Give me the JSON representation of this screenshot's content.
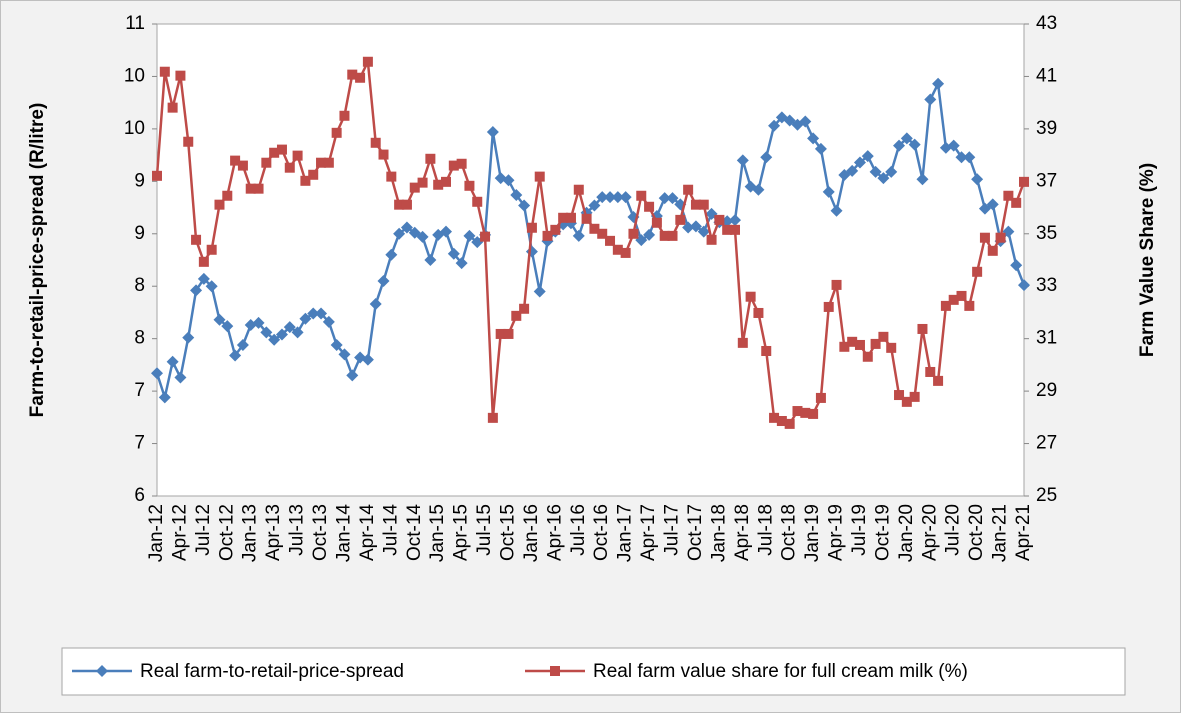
{
  "chart_data": {
    "type": "line",
    "y_label": "Farm-to-retail-price-spread (R/litre)",
    "y2_label": "Farm Value Share (%)",
    "categories": [
      "Jan-12",
      null,
      null,
      "Apr-12",
      null,
      null,
      "Jul-12",
      null,
      null,
      "Oct-12",
      null,
      null,
      "Jan-13",
      null,
      null,
      "Apr-13",
      null,
      null,
      "Jul-13",
      null,
      null,
      "Oct-13",
      null,
      null,
      "Jan-14",
      null,
      null,
      "Apr-14",
      null,
      null,
      "Jul-14",
      null,
      null,
      "Oct-14",
      null,
      null,
      "Jan-15",
      null,
      null,
      "Apr-15",
      null,
      null,
      "Jul-15",
      null,
      null,
      "Oct-15",
      null,
      null,
      "Jan-16",
      null,
      null,
      "Apr-16",
      null,
      null,
      "Jul-16",
      null,
      null,
      "Oct-16",
      null,
      null,
      "Jan-17",
      null,
      null,
      "Apr-17",
      null,
      null,
      "Jul-17",
      null,
      null,
      "Oct-17",
      null,
      null,
      "Jan-18",
      null,
      null,
      "Apr-18",
      null,
      null,
      "Jul-18",
      null,
      null,
      "Oct-18",
      null,
      null,
      "Jan-19",
      null,
      null,
      "Apr-19",
      null,
      null,
      "Jul-19",
      null,
      null,
      "Oct-19",
      null,
      null,
      "Jan-20",
      null,
      null,
      "Apr-20",
      null,
      null,
      "Jul-20",
      null,
      null,
      "Oct-20",
      null,
      null,
      "Jan-21",
      null,
      null,
      "Apr-21"
    ],
    "ylim": [
      6,
      10.5
    ],
    "yticks": [
      6,
      {
        "value": 6.5,
        "label": "7"
      },
      7,
      {
        "value": 7.5,
        "label": "8"
      },
      8,
      {
        "value": 8.5,
        "label": "9"
      },
      9,
      {
        "value": 9.5,
        "label": "10"
      },
      10,
      {
        "value": 10.5,
        "label": "11"
      }
    ],
    "y2lim": [
      25,
      43
    ],
    "y2ticks": [
      25,
      27,
      29,
      31,
      33,
      35,
      37,
      39,
      41,
      43
    ],
    "legend": "bottom",
    "series": [
      {
        "name": "Real farm-to-retail-price-spread",
        "color": "#4a7ebb",
        "marker": "diamond",
        "values": [
          7.17,
          6.94,
          7.28,
          7.13,
          7.51,
          7.96,
          8.07,
          8.0,
          7.68,
          7.62,
          7.34,
          7.44,
          7.63,
          7.65,
          7.56,
          7.49,
          7.54,
          7.61,
          7.56,
          7.69,
          7.74,
          7.74,
          7.66,
          7.44,
          7.35,
          7.15,
          7.32,
          7.3,
          7.83,
          8.05,
          8.3,
          8.5,
          8.56,
          8.51,
          8.47,
          8.25,
          8.49,
          8.52,
          8.31,
          8.22,
          8.48,
          8.42,
          8.49,
          9.47,
          9.03,
          9.01,
          8.87,
          8.77,
          8.33,
          7.95,
          8.43,
          8.52,
          8.59,
          8.6,
          8.48,
          8.7,
          8.77,
          8.85,
          8.85,
          8.85,
          8.85,
          8.66,
          8.44,
          8.49,
          8.67,
          8.84,
          8.84,
          8.78,
          8.56,
          8.57,
          8.52,
          8.69,
          8.61,
          8.62,
          8.63,
          9.2,
          8.95,
          8.92,
          9.23,
          9.53,
          9.61,
          9.58,
          9.54,
          9.57,
          9.41,
          9.31,
          8.9,
          8.72,
          9.06,
          9.1,
          9.18,
          9.24,
          9.09,
          9.03,
          9.09,
          9.34,
          9.41,
          9.35,
          9.02,
          9.78,
          9.93,
          9.32,
          9.34,
          9.23,
          9.23,
          9.02,
          8.74,
          8.78,
          8.43,
          8.52,
          8.2,
          8.01
        ]
      },
      {
        "name": "Real farm value share for full cream milk (%)",
        "color": "#be4b48",
        "marker": "square",
        "axis": "y2",
        "values": [
          37.21,
          41.18,
          39.81,
          41.03,
          38.51,
          34.77,
          33.93,
          34.39,
          36.11,
          36.45,
          37.79,
          37.6,
          36.72,
          36.72,
          37.71,
          38.09,
          38.21,
          37.52,
          37.98,
          37.02,
          37.25,
          37.71,
          37.71,
          38.85,
          39.5,
          41.07,
          40.95,
          41.56,
          38.47,
          38.02,
          37.18,
          36.11,
          36.11,
          36.76,
          36.95,
          37.86,
          36.87,
          36.98,
          37.6,
          37.67,
          36.83,
          36.22,
          34.89,
          27.98,
          31.18,
          31.18,
          31.87,
          32.14,
          35.23,
          37.18,
          34.92,
          35.15,
          35.61,
          35.61,
          36.68,
          35.57,
          35.19,
          35.0,
          34.73,
          34.39,
          34.27,
          35.0,
          36.45,
          36.03,
          35.42,
          34.92,
          34.92,
          35.53,
          36.68,
          36.11,
          36.11,
          34.77,
          35.53,
          35.15,
          35.15,
          30.84,
          32.6,
          31.98,
          30.53,
          27.98,
          27.86,
          27.75,
          28.24,
          28.17,
          28.13,
          28.74,
          32.21,
          33.05,
          30.69,
          30.88,
          30.76,
          30.31,
          30.8,
          31.07,
          30.65,
          28.85,
          28.59,
          28.78,
          31.37,
          29.73,
          29.39,
          32.25,
          32.48,
          32.63,
          32.25,
          33.55,
          34.85,
          34.35,
          34.85,
          36.45,
          36.18,
          36.98
        ]
      }
    ]
  }
}
